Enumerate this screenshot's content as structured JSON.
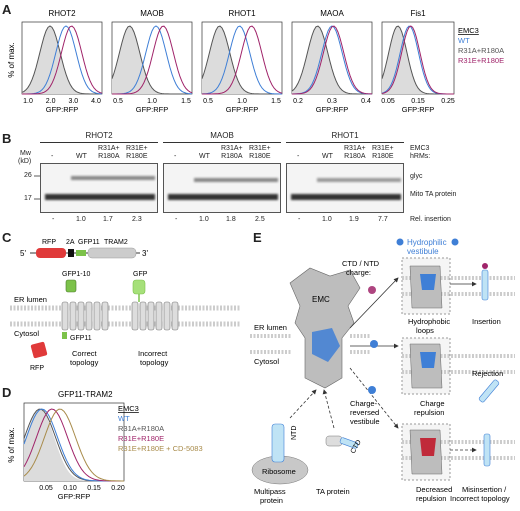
{
  "panels": {
    "A": "A",
    "B": "B",
    "C": "C",
    "D": "D",
    "E": "E"
  },
  "colors": {
    "wt": "#3f7fd6",
    "r31a": "#555555",
    "r31e": "#a0246a",
    "cd": "#a88b4a",
    "fill": "#dcdcdc",
    "emc": "#bdbdbd",
    "emc_blue": "#3f7fd6",
    "rfp": "#e03a3a",
    "gfp": "#7cc24a"
  },
  "panel_a": {
    "ylabel": "% of max.",
    "xlabel": "GFP:RFP",
    "histograms": [
      {
        "title": "RHOT2",
        "ticks": [
          "1.0",
          "2.0",
          "3.0",
          "4.0"
        ]
      },
      {
        "title": "MAOB",
        "ticks": [
          "0.5",
          "1.0",
          "1.5"
        ]
      },
      {
        "title": "RHOT1",
        "ticks": [
          "0.5",
          "1.0",
          "1.5"
        ]
      },
      {
        "title": "MAOA",
        "ticks": [
          "0.2",
          "0.3",
          "0.4"
        ]
      },
      {
        "title": "Fis1",
        "ticks": [
          "0.05",
          "0.15",
          "0.25"
        ]
      }
    ],
    "legend": {
      "title": "EMC3",
      "entries": [
        "WT",
        "R31A+R180A",
        "R31E+R180E"
      ]
    }
  },
  "panel_b": {
    "mw_label": "Mw",
    "kd_label": "(kD)",
    "mw_marks": [
      "26",
      "17"
    ],
    "blots": [
      {
        "title": "RHOT2",
        "lanes": [
          "-",
          "WT",
          "R31A+\nR180A",
          "R31E+\nR180E"
        ],
        "values": [
          "-",
          "1.0",
          "1.7",
          "2.3"
        ]
      },
      {
        "title": "MAOB",
        "lanes": [
          "-",
          "WT",
          "R31A+\nR180A",
          "R31E+\nR180E"
        ],
        "values": [
          "-",
          "1.0",
          "1.8",
          "2.5"
        ]
      },
      {
        "title": "RHOT1",
        "lanes": [
          "-",
          "WT",
          "R31A+\nR180A",
          "R31E+\nR180E"
        ],
        "values": [
          "-",
          "1.0",
          "1.9",
          "7.7"
        ]
      }
    ],
    "right_header": "EMC3",
    "right_header2": "hRMs:",
    "band_glyc": "glyc",
    "band_mito": "Mito TA protein",
    "rel_insertion": "Rel. insertion"
  },
  "panel_c": {
    "five_prime": "5'",
    "three_prime": "3'",
    "rfp": "RFP",
    "twoa": "2A",
    "gfp11": "GFP11",
    "tram2": "TRAM2",
    "gfp1_10": "GFP1-10",
    "gfp": "GFP",
    "er_lumen": "ER lumen",
    "cytosol": "Cytosol",
    "rfp_lbl": "RFP",
    "gfp11_lbl": "GFP11",
    "correct": "Correct",
    "topology": "topology",
    "incorrect": "Incorrect",
    "topology2": "topology"
  },
  "panel_d": {
    "title": "GFP11-TRAM2",
    "ylabel": "% of max.",
    "xlabel": "GFP:RFP",
    "ticks": [
      "0.05",
      "0.10",
      "0.15",
      "0.20"
    ],
    "legend": {
      "title": "EMC3",
      "entries": [
        "WT",
        "R31A+R180A",
        "R31E+R180E",
        "R31E+R180E + CD-5083"
      ]
    }
  },
  "panel_e": {
    "hydrophilic": "Hydrophilic",
    "vestibule": "vestibule",
    "emc": "EMC",
    "er_lumen": "ER lumen",
    "cytosol": "Cytosol",
    "ctd_ntd": "CTD / NTD",
    "charge": "charge:",
    "hydrophobic": "Hydrophobic",
    "loops": "loops",
    "insertion": "Insertion",
    "charge_rep": "Charge",
    "repulsion": "repulsion",
    "rejection": "Rejection",
    "charge_rev": "Charge-",
    "reversed": "reversed",
    "vestibule2": "vestibule",
    "decreased": "Decreased",
    "repulsion2": "repulsion",
    "misinsertion": "Misinsertion /",
    "incorrect_top": "Incorrect topology",
    "ntd": "NTD",
    "ctd": "CTD",
    "ribosome": "Ribosome",
    "multipass": "Multipass",
    "protein": "protein",
    "ta_protein": "TA protein"
  }
}
